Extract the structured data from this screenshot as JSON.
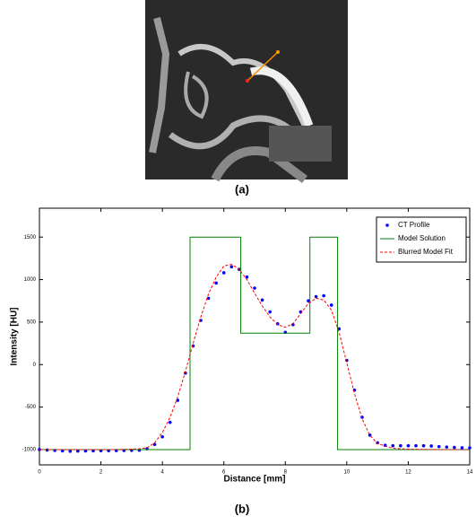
{
  "figure": {
    "label_a": "(a)",
    "label_b": "(b)"
  },
  "chart_data": {
    "type": "line",
    "xlabel": "Distance [mm]",
    "ylabel": "Intensity [HU]",
    "xlim": [
      0,
      14
    ],
    "xticks": [
      0,
      2,
      4,
      6,
      8,
      10,
      12,
      14
    ],
    "ylim": [
      -1180,
      1840
    ],
    "yticks": [
      -1000,
      -500,
      0,
      500,
      1000,
      1500
    ],
    "legend": "upper-right",
    "series": [
      {
        "name": "CT Profile",
        "color": "#0000ff",
        "style": "dots",
        "x": [
          0,
          0.25,
          0.5,
          0.75,
          1,
          1.25,
          1.5,
          1.75,
          2,
          2.25,
          2.5,
          2.75,
          3,
          3.25,
          3.5,
          3.75,
          4,
          4.25,
          4.5,
          4.75,
          5,
          5.25,
          5.5,
          5.75,
          6,
          6.25,
          6.5,
          6.75,
          7,
          7.25,
          7.5,
          7.75,
          8,
          8.25,
          8.5,
          8.75,
          9,
          9.25,
          9.5,
          9.75,
          10,
          10.25,
          10.5,
          10.75,
          11,
          11.25,
          11.5,
          11.75,
          12,
          12.25,
          12.5,
          12.75,
          13,
          13.25,
          13.5,
          13.75,
          14
        ],
        "values": [
          -1000,
          -1005,
          -1010,
          -1015,
          -1020,
          -1018,
          -1016,
          -1015,
          -1014,
          -1013,
          -1012,
          -1011,
          -1010,
          -1008,
          -990,
          -940,
          -850,
          -680,
          -420,
          -100,
          220,
          520,
          780,
          960,
          1080,
          1150,
          1120,
          1030,
          900,
          760,
          620,
          480,
          380,
          470,
          620,
          750,
          800,
          810,
          700,
          420,
          50,
          -300,
          -620,
          -830,
          -920,
          -950,
          -955,
          -955,
          -955,
          -955,
          -955,
          -958,
          -965,
          -970,
          -975,
          -978,
          -980
        ]
      },
      {
        "name": "Model Solution",
        "color": "#008000",
        "style": "solid",
        "x": [
          0,
          4.9,
          4.9,
          6.55,
          6.55,
          8.8,
          8.8,
          9.7,
          9.7,
          14
        ],
        "values": [
          -1000,
          -1000,
          1500,
          1500,
          370,
          370,
          1500,
          1500,
          -1000,
          -1000
        ]
      },
      {
        "name": "Blurred Model Fit",
        "color": "#ff0000",
        "style": "dashed",
        "x": [
          0,
          0.5,
          1,
          1.5,
          2,
          2.5,
          3,
          3.25,
          3.5,
          3.75,
          4,
          4.25,
          4.5,
          4.75,
          5,
          5.25,
          5.5,
          5.75,
          6,
          6.25,
          6.5,
          6.75,
          7,
          7.25,
          7.5,
          7.75,
          8,
          8.25,
          8.5,
          8.75,
          9,
          9.25,
          9.5,
          9.75,
          10,
          10.25,
          10.5,
          10.75,
          11,
          11.5,
          12,
          12.5,
          13,
          13.5,
          14
        ],
        "values": [
          -1000,
          -1000,
          -1000,
          -1000,
          -1000,
          -1000,
          -995,
          -990,
          -980,
          -920,
          -800,
          -620,
          -380,
          -80,
          250,
          560,
          830,
          1030,
          1160,
          1180,
          1120,
          1000,
          840,
          690,
          560,
          470,
          440,
          480,
          600,
          720,
          780,
          760,
          640,
          380,
          20,
          -340,
          -640,
          -830,
          -930,
          -985,
          -995,
          -998,
          -1000,
          -1000,
          -1000
        ]
      }
    ]
  }
}
